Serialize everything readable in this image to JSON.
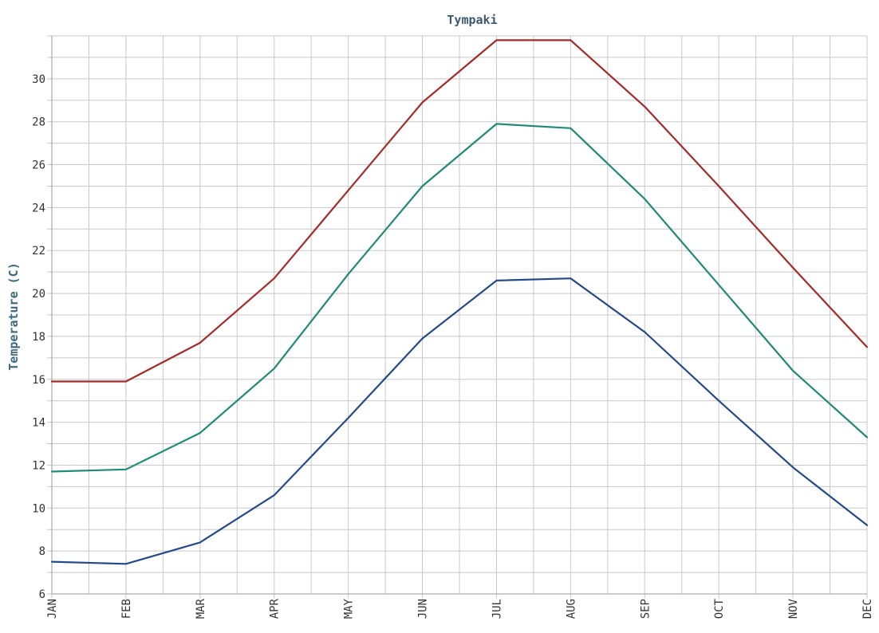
{
  "chart_data": {
    "type": "line",
    "title": "Tympaki",
    "xlabel": "",
    "ylabel": "Temperature (C)",
    "categories": [
      "JAN",
      "FEB",
      "MAR",
      "APR",
      "MAY",
      "JUN",
      "JUL",
      "AUG",
      "SEP",
      "OCT",
      "NOV",
      "DEC"
    ],
    "yticks": [
      6,
      8,
      10,
      12,
      14,
      16,
      18,
      20,
      22,
      24,
      26,
      28,
      30
    ],
    "ylim": [
      6,
      32
    ],
    "grid": true,
    "legend": "none",
    "series": [
      {
        "color": "#a52a2a",
        "values": [
          15.9,
          15.9,
          17.7,
          20.7,
          24.8,
          28.9,
          31.8,
          31.8,
          28.7,
          25.0,
          21.2,
          17.5
        ]
      },
      {
        "color": "#1f8a78",
        "values": [
          11.7,
          11.8,
          13.5,
          16.5,
          20.9,
          25.0,
          27.9,
          27.7,
          24.4,
          20.4,
          16.4,
          13.3
        ]
      },
      {
        "color": "#254a8c",
        "values": [
          7.5,
          7.4,
          8.4,
          10.6,
          14.2,
          17.9,
          20.6,
          20.7,
          18.2,
          15.0,
          11.9,
          9.2
        ]
      }
    ]
  }
}
